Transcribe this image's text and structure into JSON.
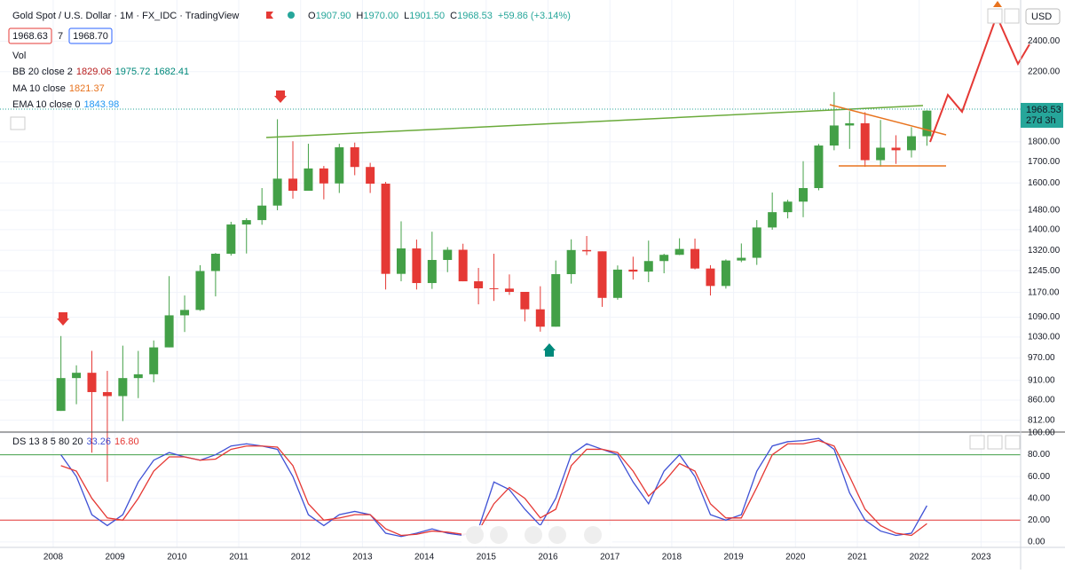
{
  "header": {
    "title": "Gold Spot / U.S. Dollar · 1M · FX_IDC · TradingView",
    "ohlc": [
      {
        "k": "O",
        "v": "1907.90"
      },
      {
        "k": "H",
        "v": "1970.00"
      },
      {
        "k": "L",
        "v": "1901.50"
      },
      {
        "k": "C",
        "v": "1968.53"
      }
    ],
    "change": "+59.86 (+3.14%)",
    "sell": "1968.63",
    "spread": "7",
    "buy": "1968.70",
    "vol": "Vol",
    "bb": {
      "name": "BB 20 close 2",
      "values": [
        "1829.06",
        "1975.72",
        "1682.41"
      ]
    },
    "ma": {
      "name": "MA 10 close",
      "value": "1821.37"
    },
    "ema": {
      "name": "EMA 10 close 0",
      "value": "1843.98"
    },
    "currency": "USD",
    "price_tag": "1968.53",
    "countdown": "27d 3h"
  },
  "chart_data": [
    {
      "type": "candlestick",
      "log_scale": true,
      "up_color": "#43a047",
      "down_color": "#e53935",
      "x": [
        2008.125,
        2008.375,
        2008.625,
        2008.875,
        2009.125,
        2009.375,
        2009.625,
        2009.875,
        2010.125,
        2010.375,
        2010.625,
        2010.875,
        2011.125,
        2011.375,
        2011.625,
        2011.875,
        2012.125,
        2012.375,
        2012.625,
        2012.875,
        2013.125,
        2013.375,
        2013.625,
        2013.875,
        2014.125,
        2014.375,
        2014.625,
        2014.875,
        2015.125,
        2015.375,
        2015.625,
        2015.875,
        2016.125,
        2016.375,
        2016.625,
        2016.875,
        2017.125,
        2017.375,
        2017.625,
        2017.875,
        2018.125,
        2018.375,
        2018.625,
        2018.875,
        2019.125,
        2019.375,
        2019.625,
        2019.875,
        2020.125,
        2020.375,
        2020.625,
        2020.875,
        2021.125,
        2021.375,
        2021.625,
        2021.875,
        2022.125
      ],
      "open": [
        834,
        916,
        930,
        880,
        870,
        916,
        926,
        1000,
        1096,
        1113,
        1244,
        1307,
        1421,
        1439,
        1500,
        1620,
        1565,
        1668,
        1598,
        1772,
        1675,
        1597,
        1234,
        1327,
        1202,
        1284,
        1322,
        1208,
        1184,
        1183,
        1172,
        1115,
        1061,
        1233,
        1321,
        1316,
        1152,
        1249,
        1242,
        1280,
        1303,
        1325,
        1253,
        1192,
        1282,
        1292,
        1409,
        1472,
        1517,
        1577,
        1781,
        1886,
        1898,
        1708,
        1770,
        1757,
        1829
      ],
      "high": [
        1033,
        950,
        990,
        935,
        1005,
        990,
        1020,
        1226,
        1160,
        1265,
        1310,
        1432,
        1447,
        1577,
        1920,
        1803,
        1790,
        1680,
        1790,
        1796,
        1695,
        1605,
        1434,
        1361,
        1392,
        1332,
        1345,
        1255,
        1307,
        1232,
        1170,
        1191,
        1282,
        1362,
        1375,
        1316,
        1264,
        1296,
        1357,
        1307,
        1366,
        1365,
        1265,
        1286,
        1346,
        1439,
        1557,
        1525,
        1703,
        1789,
        2075,
        1965,
        1959,
        1916,
        1834,
        1877,
        1970
      ],
      "low": [
        834,
        850,
        740,
        681,
        810,
        865,
        905,
        1000,
        1045,
        1110,
        1157,
        1300,
        1308,
        1420,
        1480,
        1530,
        1565,
        1527,
        1555,
        1636,
        1555,
        1180,
        1208,
        1180,
        1182,
        1240,
        1208,
        1131,
        1142,
        1162,
        1077,
        1046,
        1061,
        1200,
        1302,
        1123,
        1146,
        1214,
        1205,
        1236,
        1302,
        1250,
        1160,
        1183,
        1276,
        1266,
        1400,
        1446,
        1451,
        1567,
        1757,
        1764,
        1676,
        1677,
        1690,
        1721,
        1780
      ],
      "close": [
        916,
        930,
        880,
        870,
        916,
        926,
        1000,
        1096,
        1113,
        1244,
        1307,
        1421,
        1439,
        1500,
        1620,
        1565,
        1668,
        1598,
        1772,
        1675,
        1597,
        1234,
        1327,
        1202,
        1284,
        1322,
        1208,
        1184,
        1183,
        1172,
        1115,
        1061,
        1233,
        1321,
        1316,
        1152,
        1249,
        1242,
        1280,
        1303,
        1325,
        1253,
        1192,
        1282,
        1292,
        1409,
        1472,
        1517,
        1577,
        1781,
        1886,
        1898,
        1708,
        1770,
        1757,
        1829,
        1968
      ],
      "xlim": [
        2007.14,
        2023.64
      ],
      "xticks": [
        2008,
        2009,
        2010,
        2011,
        2012,
        2013,
        2014,
        2015,
        2016,
        2017,
        2018,
        2019,
        2020,
        2021,
        2022,
        2023
      ],
      "ylim": [
        785,
        2700
      ],
      "yticks": [
        {
          "value": 812,
          "label": "812.00"
        },
        {
          "value": 860,
          "label": "860.00"
        },
        {
          "value": 910,
          "label": "910.00"
        },
        {
          "value": 970,
          "label": "970.00"
        },
        {
          "value": 1030,
          "label": "1030.00"
        },
        {
          "value": 1090,
          "label": "1090.00"
        },
        {
          "value": 1170,
          "label": "1170.00"
        },
        {
          "value": 1245,
          "label": "1245.00"
        },
        {
          "value": 1320,
          "label": "1320.00"
        },
        {
          "value": 1400,
          "label": "1400.00"
        },
        {
          "value": 1480,
          "label": "1480.00"
        },
        {
          "value": 1600,
          "label": "1600.00"
        },
        {
          "value": 1700,
          "label": "1700.00"
        },
        {
          "value": 1800,
          "label": "1800.00"
        },
        {
          "value": 2200,
          "label": "2200.00"
        },
        {
          "value": 2400,
          "label": "2400.00"
        }
      ],
      "grid": true
    },
    {
      "type": "line",
      "title": "DS 13 8 5 80 20",
      "x": [
        2008.125,
        2008.375,
        2008.625,
        2008.875,
        2009.125,
        2009.375,
        2009.625,
        2009.875,
        2010.125,
        2010.375,
        2010.625,
        2010.875,
        2011.125,
        2011.375,
        2011.625,
        2011.875,
        2012.125,
        2012.375,
        2012.625,
        2012.875,
        2013.125,
        2013.375,
        2013.625,
        2013.875,
        2014.125,
        2014.375,
        2014.625,
        2014.875,
        2015.125,
        2015.375,
        2015.625,
        2015.875,
        2016.125,
        2016.375,
        2016.625,
        2016.875,
        2017.125,
        2017.375,
        2017.625,
        2017.875,
        2018.125,
        2018.375,
        2018.625,
        2018.875,
        2019.125,
        2019.375,
        2019.625,
        2019.875,
        2020.125,
        2020.375,
        2020.625,
        2020.875,
        2021.125,
        2021.375,
        2021.625,
        2021.875,
        2022.125
      ],
      "series": [
        {
          "name": "33.26",
          "color": "#3f51d5",
          "values": [
            80,
            60,
            25,
            15,
            25,
            55,
            75,
            82,
            78,
            75,
            80,
            88,
            90,
            88,
            85,
            60,
            25,
            15,
            25,
            28,
            25,
            8,
            5,
            8,
            12,
            8,
            6,
            12,
            55,
            48,
            30,
            15,
            40,
            80,
            90,
            85,
            80,
            55,
            35,
            65,
            80,
            60,
            25,
            20,
            25,
            65,
            88,
            92,
            93,
            95,
            85,
            45,
            20,
            10,
            6,
            8,
            33.26
          ]
        },
        {
          "name": "16.80",
          "color": "#e53935",
          "values": [
            70,
            65,
            40,
            22,
            20,
            40,
            65,
            78,
            78,
            75,
            76,
            85,
            88,
            88,
            87,
            70,
            35,
            20,
            22,
            25,
            25,
            12,
            6,
            7,
            10,
            9,
            7,
            10,
            35,
            50,
            40,
            22,
            30,
            70,
            85,
            85,
            82,
            65,
            42,
            55,
            72,
            65,
            35,
            22,
            22,
            50,
            80,
            90,
            90,
            93,
            88,
            60,
            30,
            15,
            8,
            6,
            16.8
          ]
        }
      ],
      "levels": [
        {
          "value": 80,
          "color": "#43a047"
        },
        {
          "value": 20,
          "color": "#e53935"
        }
      ],
      "xlim": [
        2007.14,
        2023.64
      ],
      "ylim": [
        -5,
        100
      ],
      "yticks": [
        {
          "value": 0,
          "label": "0.00"
        },
        {
          "value": 20,
          "label": "20.00"
        },
        {
          "value": 40,
          "label": "40.00"
        },
        {
          "value": 60,
          "label": "60.00"
        },
        {
          "value": 80,
          "label": "80.00"
        },
        {
          "value": 100,
          "label": "100.00"
        }
      ],
      "grid": true
    }
  ]
}
